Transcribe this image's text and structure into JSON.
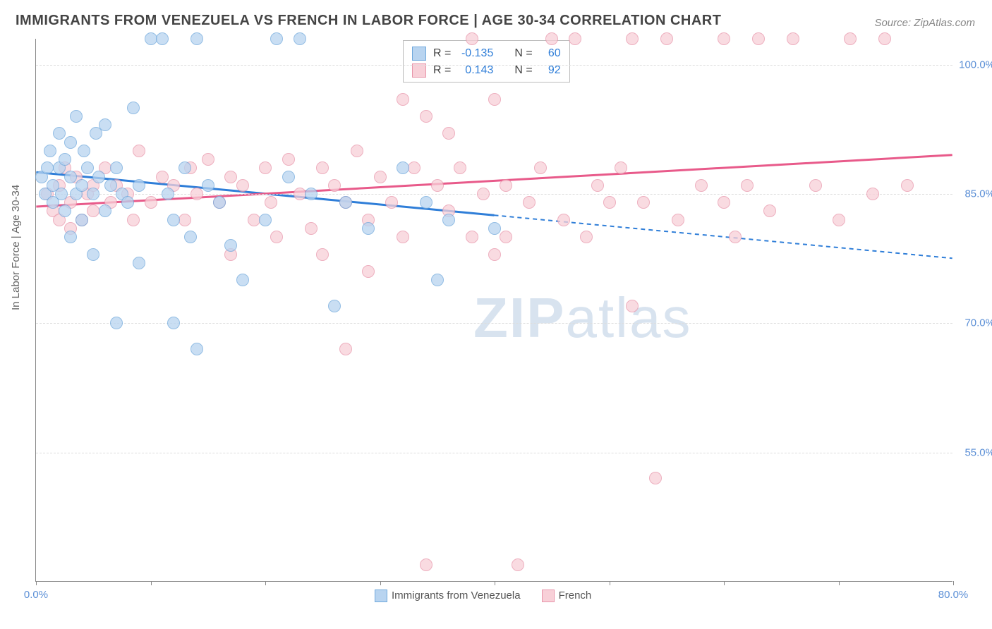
{
  "title": "IMMIGRANTS FROM VENEZUELA VS FRENCH IN LABOR FORCE | AGE 30-34 CORRELATION CHART",
  "source": "Source: ZipAtlas.com",
  "y_axis_label": "In Labor Force | Age 30-34",
  "watermark_prefix": "ZIP",
  "watermark_suffix": "atlas",
  "chart": {
    "type": "scatter",
    "xlim": [
      0,
      80
    ],
    "ylim": [
      40,
      103
    ],
    "xtick_values": [
      0,
      10,
      20,
      30,
      40,
      50,
      60,
      70,
      80
    ],
    "xtick_labels_shown": {
      "0": "0.0%",
      "80": "80.0%"
    },
    "ytick_values": [
      55,
      70,
      85,
      100
    ],
    "ytick_labels": [
      "55.0%",
      "70.0%",
      "85.0%",
      "100.0%"
    ],
    "background_color": "#ffffff",
    "grid_color": "#dddddd",
    "axis_color": "#888888",
    "tick_label_color": "#5b8fd6"
  },
  "series": [
    {
      "name": "Immigrants from Venezuela",
      "fill": "#b8d4f0",
      "stroke": "#6fa8dc",
      "line_color": "#2f7ed8",
      "r_label": "-0.135",
      "n_label": "60",
      "trend": {
        "x1": 0,
        "y1": 87.5,
        "x2_solid": 40,
        "y2_solid": 82.5,
        "x2_dash": 80,
        "y2_dash": 77.5
      },
      "points": [
        [
          0.5,
          87
        ],
        [
          0.8,
          85
        ],
        [
          1,
          88
        ],
        [
          1.2,
          90
        ],
        [
          1.5,
          86
        ],
        [
          1.5,
          84
        ],
        [
          2,
          92
        ],
        [
          2,
          88
        ],
        [
          2.2,
          85
        ],
        [
          2.5,
          89
        ],
        [
          2.5,
          83
        ],
        [
          3,
          87
        ],
        [
          3,
          91
        ],
        [
          3,
          80
        ],
        [
          3.5,
          85
        ],
        [
          3.5,
          94
        ],
        [
          4,
          86
        ],
        [
          4,
          82
        ],
        [
          4.2,
          90
        ],
        [
          4.5,
          88
        ],
        [
          5,
          85
        ],
        [
          5,
          78
        ],
        [
          5.2,
          92
        ],
        [
          5.5,
          87
        ],
        [
          6,
          93
        ],
        [
          6,
          83
        ],
        [
          6.5,
          86
        ],
        [
          7,
          88
        ],
        [
          7,
          70
        ],
        [
          7.5,
          85
        ],
        [
          8,
          84
        ],
        [
          8.5,
          95
        ],
        [
          9,
          86
        ],
        [
          9,
          77
        ],
        [
          10,
          103
        ],
        [
          11,
          103
        ],
        [
          11.5,
          85
        ],
        [
          12,
          82
        ],
        [
          12,
          70
        ],
        [
          13,
          88
        ],
        [
          13.5,
          80
        ],
        [
          14,
          103
        ],
        [
          14,
          67
        ],
        [
          15,
          86
        ],
        [
          16,
          84
        ],
        [
          17,
          79
        ],
        [
          18,
          75
        ],
        [
          20,
          82
        ],
        [
          21,
          103
        ],
        [
          22,
          87
        ],
        [
          23,
          103
        ],
        [
          24,
          85
        ],
        [
          26,
          72
        ],
        [
          27,
          84
        ],
        [
          29,
          81
        ],
        [
          32,
          88
        ],
        [
          34,
          84
        ],
        [
          35,
          75
        ],
        [
          36,
          82
        ],
        [
          40,
          81
        ]
      ]
    },
    {
      "name": "French",
      "fill": "#f8d0d8",
      "stroke": "#e895aa",
      "line_color": "#e85a8a",
      "r_label": "0.143",
      "n_label": "92",
      "trend": {
        "x1": 0,
        "y1": 83.5,
        "x2_solid": 80,
        "y2_solid": 89.5,
        "x2_dash": 80,
        "y2_dash": 89.5
      },
      "points": [
        [
          1,
          85
        ],
        [
          1.5,
          83
        ],
        [
          2,
          86
        ],
        [
          2,
          82
        ],
        [
          2.5,
          88
        ],
        [
          3,
          84
        ],
        [
          3,
          81
        ],
        [
          3.5,
          87
        ],
        [
          4,
          82
        ],
        [
          4.5,
          85
        ],
        [
          5,
          86
        ],
        [
          5,
          83
        ],
        [
          6,
          88
        ],
        [
          6.5,
          84
        ],
        [
          7,
          86
        ],
        [
          8,
          85
        ],
        [
          8.5,
          82
        ],
        [
          9,
          90
        ],
        [
          10,
          84
        ],
        [
          11,
          87
        ],
        [
          12,
          86
        ],
        [
          13,
          82
        ],
        [
          13.5,
          88
        ],
        [
          14,
          85
        ],
        [
          15,
          89
        ],
        [
          16,
          84
        ],
        [
          17,
          87
        ],
        [
          17,
          78
        ],
        [
          18,
          86
        ],
        [
          19,
          82
        ],
        [
          20,
          88
        ],
        [
          20.5,
          84
        ],
        [
          21,
          80
        ],
        [
          22,
          89
        ],
        [
          23,
          85
        ],
        [
          24,
          81
        ],
        [
          25,
          88
        ],
        [
          25,
          78
        ],
        [
          26,
          86
        ],
        [
          27,
          84
        ],
        [
          27,
          67
        ],
        [
          28,
          90
        ],
        [
          29,
          82
        ],
        [
          29,
          76
        ],
        [
          30,
          87
        ],
        [
          31,
          84
        ],
        [
          32,
          96
        ],
        [
          32,
          80
        ],
        [
          33,
          88
        ],
        [
          34,
          94
        ],
        [
          34,
          42
        ],
        [
          35,
          86
        ],
        [
          36,
          83
        ],
        [
          36,
          92
        ],
        [
          37,
          88
        ],
        [
          38,
          80
        ],
        [
          38,
          103
        ],
        [
          39,
          85
        ],
        [
          40,
          96
        ],
        [
          40,
          78
        ],
        [
          41,
          86
        ],
        [
          41,
          80
        ],
        [
          42,
          42
        ],
        [
          43,
          84
        ],
        [
          44,
          88
        ],
        [
          45,
          103
        ],
        [
          46,
          82
        ],
        [
          47,
          103
        ],
        [
          48,
          80
        ],
        [
          49,
          86
        ],
        [
          50,
          84
        ],
        [
          51,
          88
        ],
        [
          52,
          103
        ],
        [
          52,
          72
        ],
        [
          53,
          84
        ],
        [
          54,
          52
        ],
        [
          55,
          103
        ],
        [
          56,
          82
        ],
        [
          58,
          86
        ],
        [
          60,
          84
        ],
        [
          60,
          103
        ],
        [
          61,
          80
        ],
        [
          62,
          86
        ],
        [
          63,
          103
        ],
        [
          64,
          83
        ],
        [
          66,
          103
        ],
        [
          68,
          86
        ],
        [
          70,
          82
        ],
        [
          71,
          103
        ],
        [
          73,
          85
        ],
        [
          74,
          103
        ],
        [
          76,
          86
        ]
      ]
    }
  ],
  "legend_box": {
    "r_prefix": "R =",
    "n_prefix": "N ="
  },
  "bottom_legend": true
}
